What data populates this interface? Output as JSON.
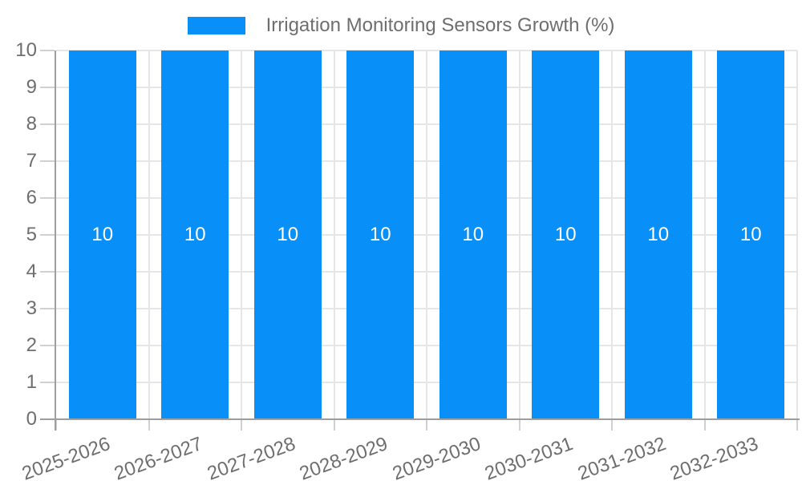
{
  "chart_data": {
    "type": "bar",
    "title": "Irrigation Monitoring Sensors Growth (%)",
    "categories": [
      "2025-2026",
      "2026-2027",
      "2027-2028",
      "2028-2029",
      "2029-2030",
      "2030-2031",
      "2031-2032",
      "2032-2033"
    ],
    "values": [
      10,
      10,
      10,
      10,
      10,
      10,
      10,
      10
    ],
    "bar_labels": [
      "10",
      "10",
      "10",
      "10",
      "10",
      "10",
      "10",
      "10"
    ],
    "xlabel": "",
    "ylabel": "",
    "ylim": [
      0,
      10
    ],
    "yticks": [
      0,
      1,
      2,
      3,
      4,
      5,
      6,
      7,
      8,
      9,
      10
    ],
    "grid": true,
    "legend_position": "top",
    "colors": {
      "bar": "#0990f8",
      "bar_label_text": "#ffffff",
      "tick_text": "#6e6e6e",
      "legend_text": "#6e6e6e",
      "grid_line": "#e6e6e6",
      "tick_mark": "#d0d0d0",
      "axis_line": "#9e9e9e",
      "background": "#ffffff"
    }
  }
}
